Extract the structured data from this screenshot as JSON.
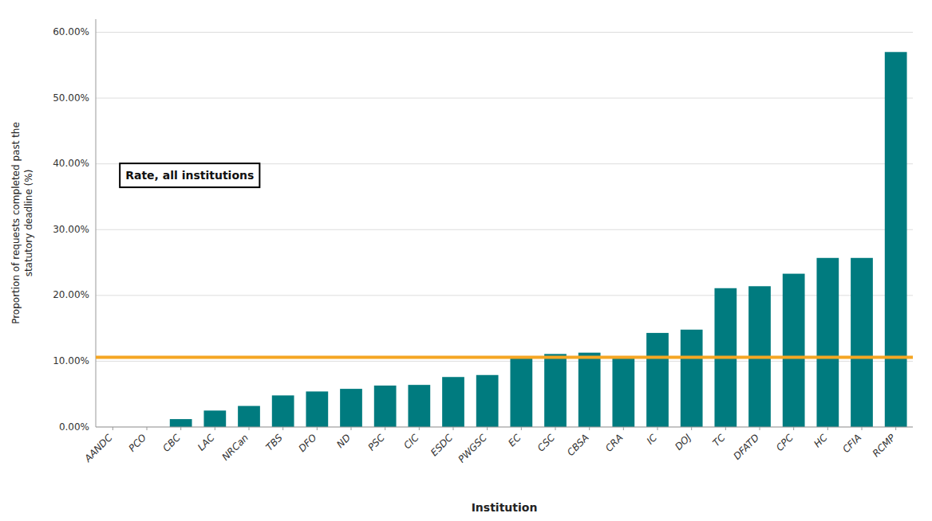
{
  "chart_data": {
    "type": "bar",
    "categories": [
      "AANDC",
      "PCO",
      "CBC",
      "LAC",
      "NRCan",
      "TBS",
      "DFO",
      "ND",
      "PSC",
      "CIC",
      "ESDC",
      "PWGSC",
      "EC",
      "CSC",
      "CBSA",
      "CRA",
      "IC",
      "DOJ",
      "TC",
      "DFATD",
      "CPC",
      "HC",
      "CFIA",
      "RCMP"
    ],
    "values": [
      0.0,
      0.0,
      1.2,
      2.5,
      3.2,
      4.8,
      5.4,
      5.8,
      6.3,
      6.4,
      7.6,
      7.9,
      10.6,
      11.1,
      11.3,
      10.5,
      14.3,
      14.8,
      21.1,
      21.4,
      23.3,
      25.7,
      25.7,
      57.0
    ],
    "color": "#007B7F",
    "xlabel": "Institution",
    "ylabel": "Proportion of requests completed past the\nstatutory deadline (%)",
    "ylim": [
      0,
      62
    ],
    "yticks": [
      {
        "value": 0,
        "label": "0.00%"
      },
      {
        "value": 10,
        "label": "10.00%"
      },
      {
        "value": 20,
        "label": "20.00%"
      },
      {
        "value": 30,
        "label": "30.00%"
      },
      {
        "value": 40,
        "label": "40.00%"
      },
      {
        "value": 50,
        "label": "50.00%"
      },
      {
        "value": 60,
        "label": "60.00%"
      }
    ],
    "grid": true,
    "reference_line": {
      "value": 10.6,
      "label": "Rate, all institutions",
      "color": "#F5A623"
    }
  }
}
